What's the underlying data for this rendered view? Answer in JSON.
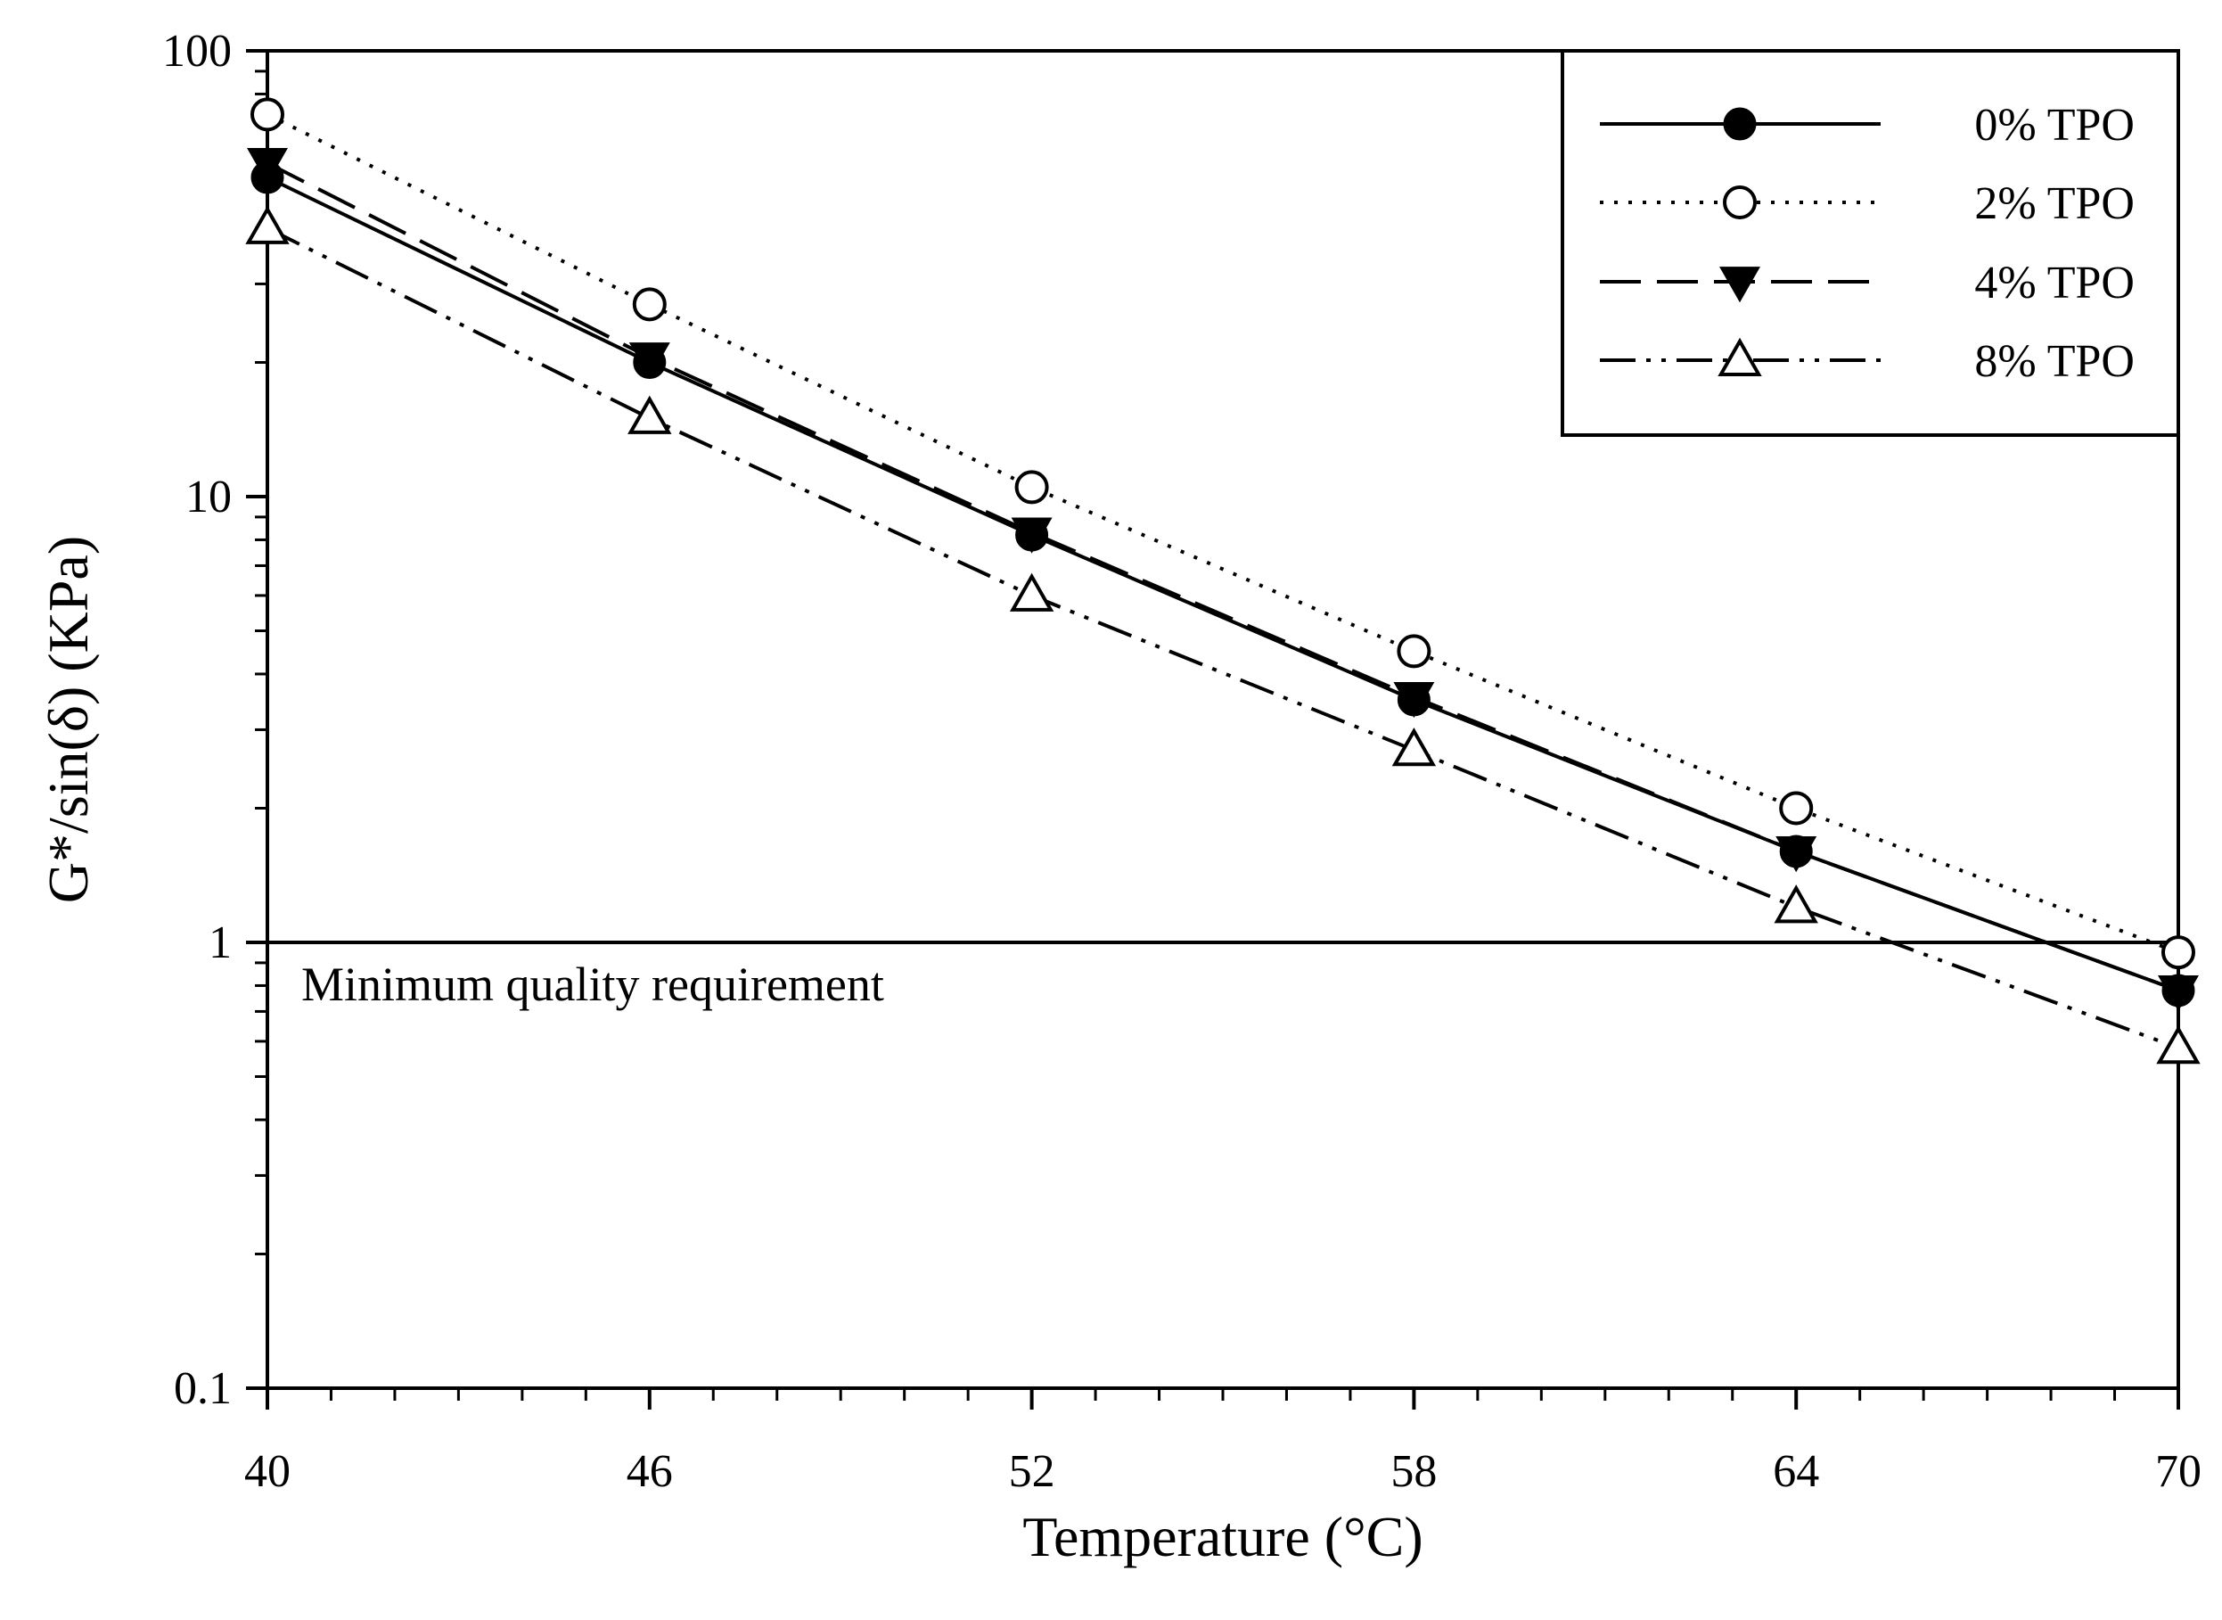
{
  "chart_data": {
    "type": "line",
    "title": "",
    "xlabel": "Temperature (°C)",
    "ylabel": "G*/sin(δ) (KPa)",
    "yscale": "log",
    "xlim": [
      40,
      70
    ],
    "ylim": [
      0.1,
      100
    ],
    "x_ticks": [
      "40",
      "46",
      "52",
      "58",
      "64",
      "70"
    ],
    "y_ticks": [
      "0.1",
      "1",
      "10",
      "100"
    ],
    "grid": false,
    "legend_position": "top-right",
    "x": [
      40,
      46,
      52,
      58,
      64,
      70
    ],
    "series": [
      {
        "name": "0% TPO",
        "marker": "filled-circle",
        "line": "solid",
        "values": [
          52,
          20,
          8.2,
          3.5,
          1.6,
          0.78
        ]
      },
      {
        "name": "2% TPO",
        "marker": "open-circle",
        "line": "dotted",
        "values": [
          72,
          27,
          10.5,
          4.5,
          2.0,
          0.95
        ]
      },
      {
        "name": "4% TPO",
        "marker": "filled-triangle-down",
        "line": "dashed",
        "values": [
          56,
          20.5,
          8.3,
          3.55,
          1.6,
          0.78
        ]
      },
      {
        "name": "8% TPO",
        "marker": "open-triangle-up",
        "line": "dash-dot-dot",
        "values": [
          40,
          15,
          6.0,
          2.7,
          1.2,
          0.58
        ]
      }
    ],
    "reference_line": {
      "value": 1,
      "label": "Minimum quality requirement"
    }
  }
}
